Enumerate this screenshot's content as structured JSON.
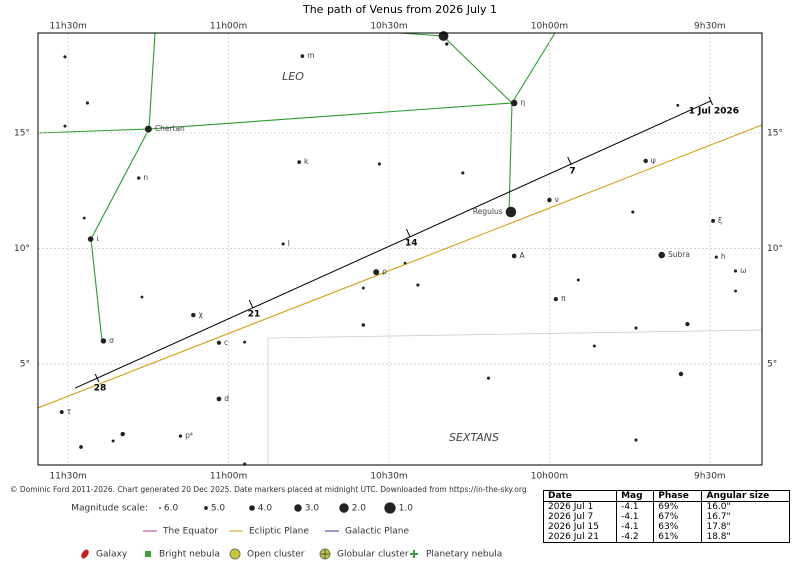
{
  "chart_data": {
    "type": "starmap",
    "title": "The path of Venus from 2026 July 1",
    "xlim": [
      11.594,
      9.3375
    ],
    "ylim": [
      0.63,
      19.33
    ],
    "xticks": [
      {
        "value": 11.5,
        "label": "11h30m"
      },
      {
        "value": 11.0,
        "label": "11h00m"
      },
      {
        "value": 10.5,
        "label": "10h30m"
      },
      {
        "value": 10.0,
        "label": "10h00m"
      },
      {
        "value": 9.5,
        "label": "9h30m"
      }
    ],
    "yticks": [
      {
        "value": 5,
        "label": "5°"
      },
      {
        "value": 10,
        "label": "10°"
      },
      {
        "value": 15,
        "label": "15°"
      }
    ],
    "constellations": [
      "LEO",
      "SEXTANS"
    ],
    "stars": {
      "x": [
        10.33,
        10.32,
        10.77,
        11.51,
        11.44,
        10.11,
        9.6,
        11.25,
        11.51,
        10.78,
        10.53,
        10.27,
        9.7,
        11.28,
        10.0,
        10.12,
        9.74,
        9.49,
        11.45,
        11.43,
        10.83,
        10.11,
        9.65,
        9.48,
        9.42,
        10.45,
        10.54,
        9.91,
        10.41,
        10.58,
        9.42,
        11.27,
        9.98,
        11.11,
        10.58,
        9.57,
        9.73,
        11.39,
        11.03,
        10.95,
        9.86,
        9.59,
        10.19,
        11.03,
        11.52,
        11.33,
        11.15,
        11.36,
        11.46,
        9.73,
        10.95
      ],
      "y": [
        19.2,
        18.85,
        18.33,
        18.3,
        16.3,
        16.3,
        16.2,
        15.17,
        15.3,
        13.74,
        13.66,
        13.27,
        13.79,
        13.05,
        12.1,
        11.58,
        11.58,
        11.2,
        11.32,
        10.41,
        10.2,
        9.68,
        9.72,
        9.63,
        9.03,
        9.37,
        8.98,
        8.64,
        8.42,
        8.29,
        8.16,
        7.9,
        7.81,
        7.12,
        6.69,
        6.73,
        6.56,
        6.0,
        5.92,
        5.95,
        5.78,
        4.57,
        4.39,
        3.49,
        2.92,
        1.97,
        1.88,
        1.67,
        1.41,
        1.71,
        0.67
      ],
      "mag": [
        1.8,
        5.2,
        5.0,
        5.3,
        5.3,
        3.5,
        5.4,
        3.3,
        5.4,
        5.0,
        5.3,
        5.3,
        4.6,
        5.2,
        4.6,
        1.4,
        5.3,
        4.9,
        5.4,
        4.0,
        5.3,
        4.5,
        3.5,
        5.3,
        5.3,
        5.5,
        3.8,
        5.4,
        5.3,
        5.4,
        5.4,
        5.4,
        4.7,
        4.6,
        5.1,
        4.7,
        5.3,
        4.1,
        4.8,
        5.4,
        5.4,
        4.6,
        5.3,
        4.5,
        4.9,
        4.6,
        5.2,
        5.4,
        5.0,
        5.3,
        5.3
      ],
      "labels": [
        null,
        null,
        "m",
        null,
        null,
        "η",
        null,
        "Chertan",
        null,
        "k",
        null,
        null,
        "ψ",
        "n",
        "ν",
        "Regulus",
        null,
        "ξ",
        null,
        "ι",
        "l",
        "A",
        "Subra",
        "h",
        "ω",
        null,
        "ρ",
        null,
        null,
        null,
        null,
        null,
        "π",
        "χ",
        null,
        null,
        null,
        "σ",
        "c",
        null,
        null,
        null,
        null,
        "d",
        "τ",
        null,
        "p⁴",
        null,
        null,
        null,
        null
      ]
    },
    "venus": {
      "x": [
        9.497,
        11.478
      ],
      "y": [
        16.39,
        3.96
      ]
    },
    "venus_dates": {
      "labels": [
        "1 Jul 2026",
        "7",
        "14",
        "21",
        "28"
      ],
      "x": [
        9.497,
        9.9375,
        10.44,
        10.93,
        11.41
      ],
      "y": [
        16.39,
        13.79,
        10.67,
        7.6,
        4.4
      ]
    },
    "ecliptic": {
      "x": [
        11.594,
        9.3375
      ],
      "y": [
        3.1,
        15.35
      ]
    },
    "footer": "© Dominic Ford 2011-2026. Chart generated 20 Dec 2025. Date markers placed at midnight UTC. Downloaded from https://in-the-sky.org",
    "magnitude_scale": {
      "title": "Magnitude scale:",
      "ticks": [
        {
          "value": 6,
          "label": "6.0"
        },
        {
          "value": 5,
          "label": "5.0"
        },
        {
          "value": 4,
          "label": "4.0"
        },
        {
          "value": 3,
          "label": "3.0"
        },
        {
          "value": 2,
          "label": "2.0"
        },
        {
          "value": 1,
          "label": "1.0"
        }
      ]
    },
    "legend": {
      "lines": [
        "The Equator",
        "Ecliptic Plane",
        "Galactic Plane"
      ],
      "objects": [
        "Galaxy",
        "Bright nebula",
        "Open cluster",
        "Globular cluster",
        "Planetary nebula"
      ]
    }
  },
  "table": {
    "header": [
      "Date",
      "Mag",
      "Phase",
      "Angular size"
    ],
    "rows": [
      [
        "2026 Jul 1",
        "-4.1",
        "69%",
        "16.0\""
      ],
      [
        "2026 Jul 7",
        "-4.1",
        "67%",
        "16.7\""
      ],
      [
        "2026 Jul 15",
        "-4.1",
        "63%",
        "17.8\""
      ],
      [
        "2026 Jul 21",
        "-4.2",
        "61%",
        "18.8\""
      ]
    ]
  }
}
